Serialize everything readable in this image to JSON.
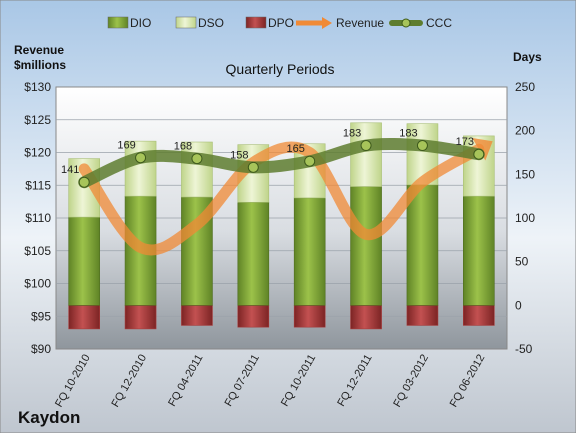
{
  "chart_data": {
    "type": "bar",
    "title": "Quarterly Periods",
    "company": "Kaydon",
    "y_left_label_line1": "Revenue",
    "y_left_label_line2": "$millions",
    "y_right_label": "Days",
    "ylim_left": [
      90,
      130
    ],
    "ylim_right": [
      -50,
      250
    ],
    "y_left_ticks": [
      "$90",
      "$95",
      "$100",
      "$105",
      "$110",
      "$115",
      "$120",
      "$125",
      "$130"
    ],
    "y_right_ticks": [
      "-50",
      "0",
      "50",
      "100",
      "150",
      "200",
      "250"
    ],
    "categories": [
      "FQ 10-2010",
      "FQ 12-2010",
      "FQ 04-2011",
      "FQ 07-2011",
      "FQ 10-2011",
      "FQ 12-2011",
      "FQ 03-2012",
      "FQ 06-2012"
    ],
    "legend": [
      "DIO",
      "DSO",
      "DPO",
      "Revenue",
      "CCC"
    ],
    "series": [
      {
        "name": "DIO",
        "axis": "right",
        "values": [
          101,
          125,
          124,
          118,
          123,
          136,
          138,
          125
        ]
      },
      {
        "name": "DSO",
        "axis": "right",
        "values": [
          67,
          63,
          63,
          66,
          62,
          73,
          70,
          69
        ]
      },
      {
        "name": "DPO",
        "axis": "right",
        "values": [
          -27,
          -27,
          -23,
          -25,
          -25,
          -27,
          -23,
          -23
        ]
      },
      {
        "name": "Revenue",
        "axis": "left",
        "values": [
          117.5,
          105.5,
          109.0,
          118.5,
          120.0,
          107.5,
          115.5,
          120.5
        ]
      },
      {
        "name": "CCC",
        "axis": "right",
        "values": [
          141,
          169,
          168,
          158,
          165,
          183,
          183,
          173
        ]
      }
    ],
    "ccc_labels": [
      "141",
      "169",
      "168",
      "158",
      "165",
      "183",
      "183",
      "173"
    ],
    "colors": {
      "dio": "#7ea03a",
      "dso": "#d7e6ae",
      "dpo": "#a63b3b",
      "revenue": "#f08a36",
      "ccc": "#5e7d2f"
    },
    "grid": true,
    "legend_position": "top"
  }
}
